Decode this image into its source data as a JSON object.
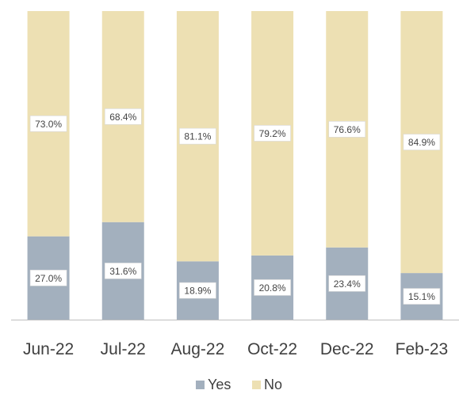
{
  "chart_data": {
    "type": "bar",
    "stacked": true,
    "normalized": true,
    "categories": [
      "Jun-22",
      "Jul-22",
      "Aug-22",
      "Oct-22",
      "Dec-22",
      "Feb-23"
    ],
    "series": [
      {
        "name": "Yes",
        "color": "#a3b0be",
        "values": [
          27.0,
          31.6,
          18.9,
          20.8,
          23.4,
          15.1
        ],
        "labels": [
          "27.0%",
          "31.6%",
          "18.9%",
          "20.8%",
          "23.4%",
          "15.1%"
        ]
      },
      {
        "name": "No",
        "color": "#ede0b3",
        "values": [
          73.0,
          68.4,
          81.1,
          79.2,
          76.6,
          84.9
        ],
        "labels": [
          "73.0%",
          "68.4%",
          "81.1%",
          "79.2%",
          "76.6%",
          "84.9%"
        ]
      }
    ],
    "ylim": [
      0,
      100
    ],
    "legend": "bottom-center",
    "grid": false,
    "axis_color": "#bfbfbf"
  }
}
